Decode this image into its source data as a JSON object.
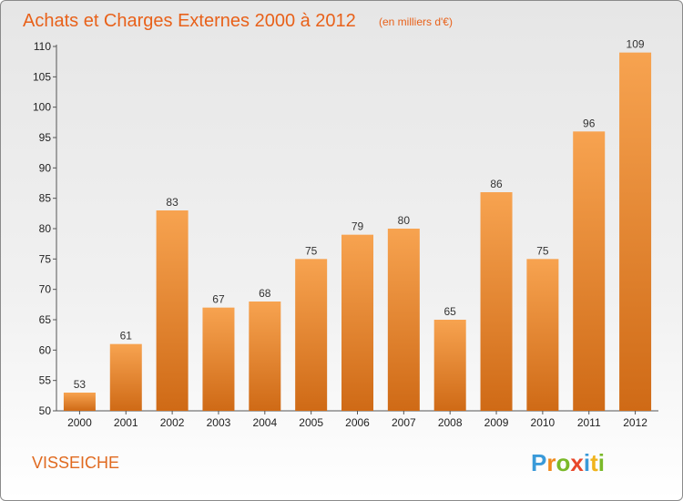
{
  "chart_data": {
    "type": "bar",
    "title": "Achats et Charges Externes 2000 à 2012",
    "subtitle": "(en milliers d'€)",
    "categories": [
      "2000",
      "2001",
      "2002",
      "2003",
      "2004",
      "2005",
      "2006",
      "2007",
      "2008",
      "2009",
      "2010",
      "2011",
      "2012"
    ],
    "values": [
      53,
      61,
      83,
      67,
      68,
      75,
      79,
      80,
      65,
      86,
      75,
      96,
      109
    ],
    "data_labels": [
      "53",
      "61",
      "83",
      "67",
      "68",
      "75",
      "79",
      "80",
      "65",
      "86",
      "75",
      "96",
      "109"
    ],
    "ylim": [
      50,
      110
    ],
    "yticks": [
      "50",
      "55",
      "60",
      "65",
      "70",
      "75",
      "80",
      "85",
      "90",
      "95",
      "100",
      "105",
      "110"
    ],
    "xlabel": "",
    "ylabel": "",
    "grid": false,
    "colors": {
      "bar_light": "#f7a350",
      "bar_dark": "#cf6a16",
      "title": "#e8611a"
    }
  },
  "footer": {
    "commune": "VISSEICHE",
    "logo": {
      "letters": [
        "P",
        "r",
        "o",
        "x",
        "i",
        "t",
        "i"
      ]
    }
  }
}
